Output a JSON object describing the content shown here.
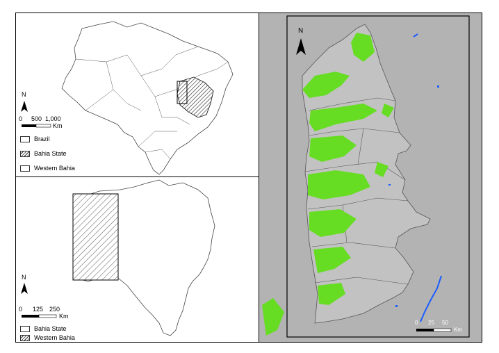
{
  "top_map": {
    "north": "N",
    "scale_ticks": [
      "0",
      "500",
      "1,000"
    ],
    "scale_unit": "Km",
    "legend": [
      {
        "label": "Brazil",
        "pattern": "white"
      },
      {
        "label": "Bahia State",
        "pattern": "hatched"
      },
      {
        "label": "Western Bahia",
        "pattern": "white"
      }
    ]
  },
  "bottom_map": {
    "north": "N",
    "scale_ticks": [
      "0",
      "125",
      "250"
    ],
    "scale_unit": "Km",
    "legend": [
      {
        "label": "Bahia State",
        "pattern": "white"
      },
      {
        "label": "Western Bahia",
        "pattern": "hatched"
      }
    ]
  },
  "right_map": {
    "north": "N",
    "scale_ticks": [
      "0",
      "25",
      "50"
    ],
    "scale_unit": "Km",
    "colors": {
      "background": "#b3b3b3",
      "vegetation": "#66dd22",
      "water": "#1a5cff",
      "boundary": "#555555"
    }
  }
}
